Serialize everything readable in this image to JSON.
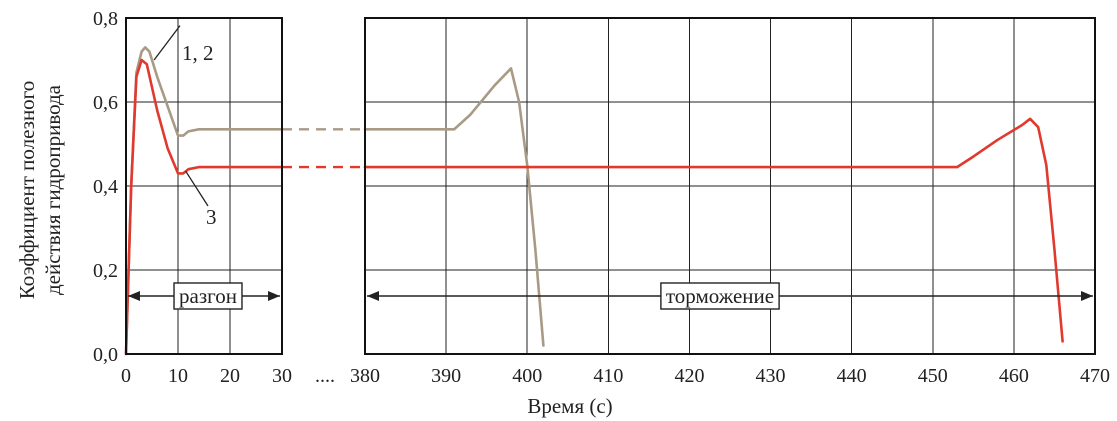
{
  "chart_data": {
    "type": "line",
    "title": "",
    "xlabel": "Время (с)",
    "ylabel_lines": [
      "Коэффициент полезного",
      "действия гидропривода"
    ],
    "ylim": [
      0.0,
      0.8
    ],
    "yticks": [
      "0,0",
      "0,2",
      "0,4",
      "0,6",
      "0,8"
    ],
    "yticks_values": [
      0.0,
      0.2,
      0.4,
      0.6,
      0.8
    ],
    "x_break_label": "....",
    "segments": [
      {
        "name": "left",
        "xlim": [
          0,
          30
        ],
        "xticks": [
          0,
          10,
          20,
          30
        ],
        "grid_ys": [
          0.2,
          0.4,
          0.6
        ]
      },
      {
        "name": "right",
        "xlim": [
          380,
          470
        ],
        "xticks": [
          380,
          390,
          400,
          410,
          420,
          430,
          440,
          450,
          460,
          470
        ],
        "grid_ys": [
          0.2,
          0.4,
          0.6
        ]
      }
    ],
    "series": [
      {
        "name": "1, 2",
        "color": "#a89a85",
        "points_left": [
          [
            0,
            0
          ],
          [
            1,
            0.4
          ],
          [
            2,
            0.67
          ],
          [
            3,
            0.72
          ],
          [
            3.7,
            0.73
          ],
          [
            4.5,
            0.72
          ],
          [
            6,
            0.66
          ],
          [
            8,
            0.59
          ],
          [
            10,
            0.52
          ],
          [
            11,
            0.52
          ],
          [
            12,
            0.53
          ],
          [
            14,
            0.535
          ],
          [
            30,
            0.535
          ]
        ],
        "points_right": [
          [
            380,
            0.535
          ],
          [
            391,
            0.535
          ],
          [
            393,
            0.57
          ],
          [
            396,
            0.64
          ],
          [
            398,
            0.68
          ],
          [
            399,
            0.6
          ],
          [
            400,
            0.45
          ],
          [
            401,
            0.25
          ],
          [
            402,
            0.02
          ]
        ]
      },
      {
        "name": "3",
        "color": "#e03a2e",
        "points_left": [
          [
            0,
            0
          ],
          [
            1,
            0.4
          ],
          [
            2,
            0.66
          ],
          [
            3,
            0.7
          ],
          [
            4,
            0.69
          ],
          [
            6,
            0.58
          ],
          [
            8,
            0.49
          ],
          [
            10,
            0.43
          ],
          [
            11,
            0.43
          ],
          [
            12,
            0.44
          ],
          [
            14,
            0.445
          ],
          [
            30,
            0.445
          ]
        ],
        "points_right": [
          [
            380,
            0.445
          ],
          [
            453,
            0.445
          ],
          [
            455,
            0.47
          ],
          [
            458,
            0.51
          ],
          [
            461,
            0.545
          ],
          [
            462,
            0.56
          ],
          [
            463,
            0.54
          ],
          [
            464,
            0.45
          ],
          [
            465,
            0.25
          ],
          [
            466,
            0.03
          ]
        ]
      }
    ],
    "phases": [
      {
        "label": "разгон",
        "from": 0,
        "to": 30
      },
      {
        "label": "торможение",
        "from": 380,
        "to": 470
      }
    ]
  }
}
